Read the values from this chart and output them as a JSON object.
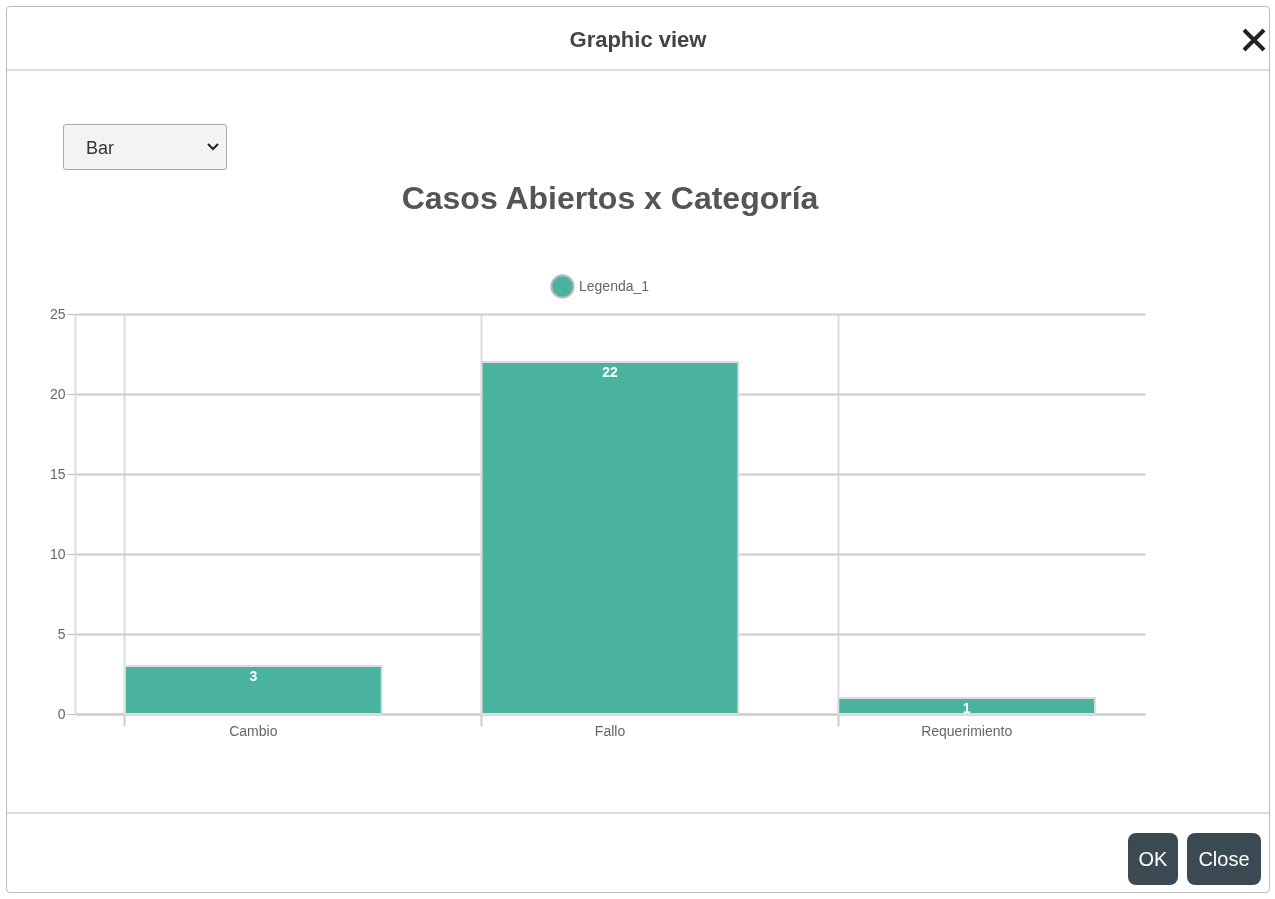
{
  "chart_data": {
    "type": "bar",
    "title": "Casos Abiertos x Categoría",
    "categories": [
      "Cambio",
      "Fallo",
      "Requerimiento"
    ],
    "series": [
      {
        "name": "Legenda_1",
        "color": "#4ab3a0",
        "values": [
          3,
          22,
          1
        ]
      }
    ],
    "ylim": [
      0,
      25
    ],
    "yticks": [
      0,
      5,
      10,
      15,
      20,
      25
    ],
    "grid": true,
    "legend": "top",
    "data_labels": true,
    "annotations": [
      "Graphic view",
      "Bar",
      "OK",
      "Close"
    ]
  }
}
